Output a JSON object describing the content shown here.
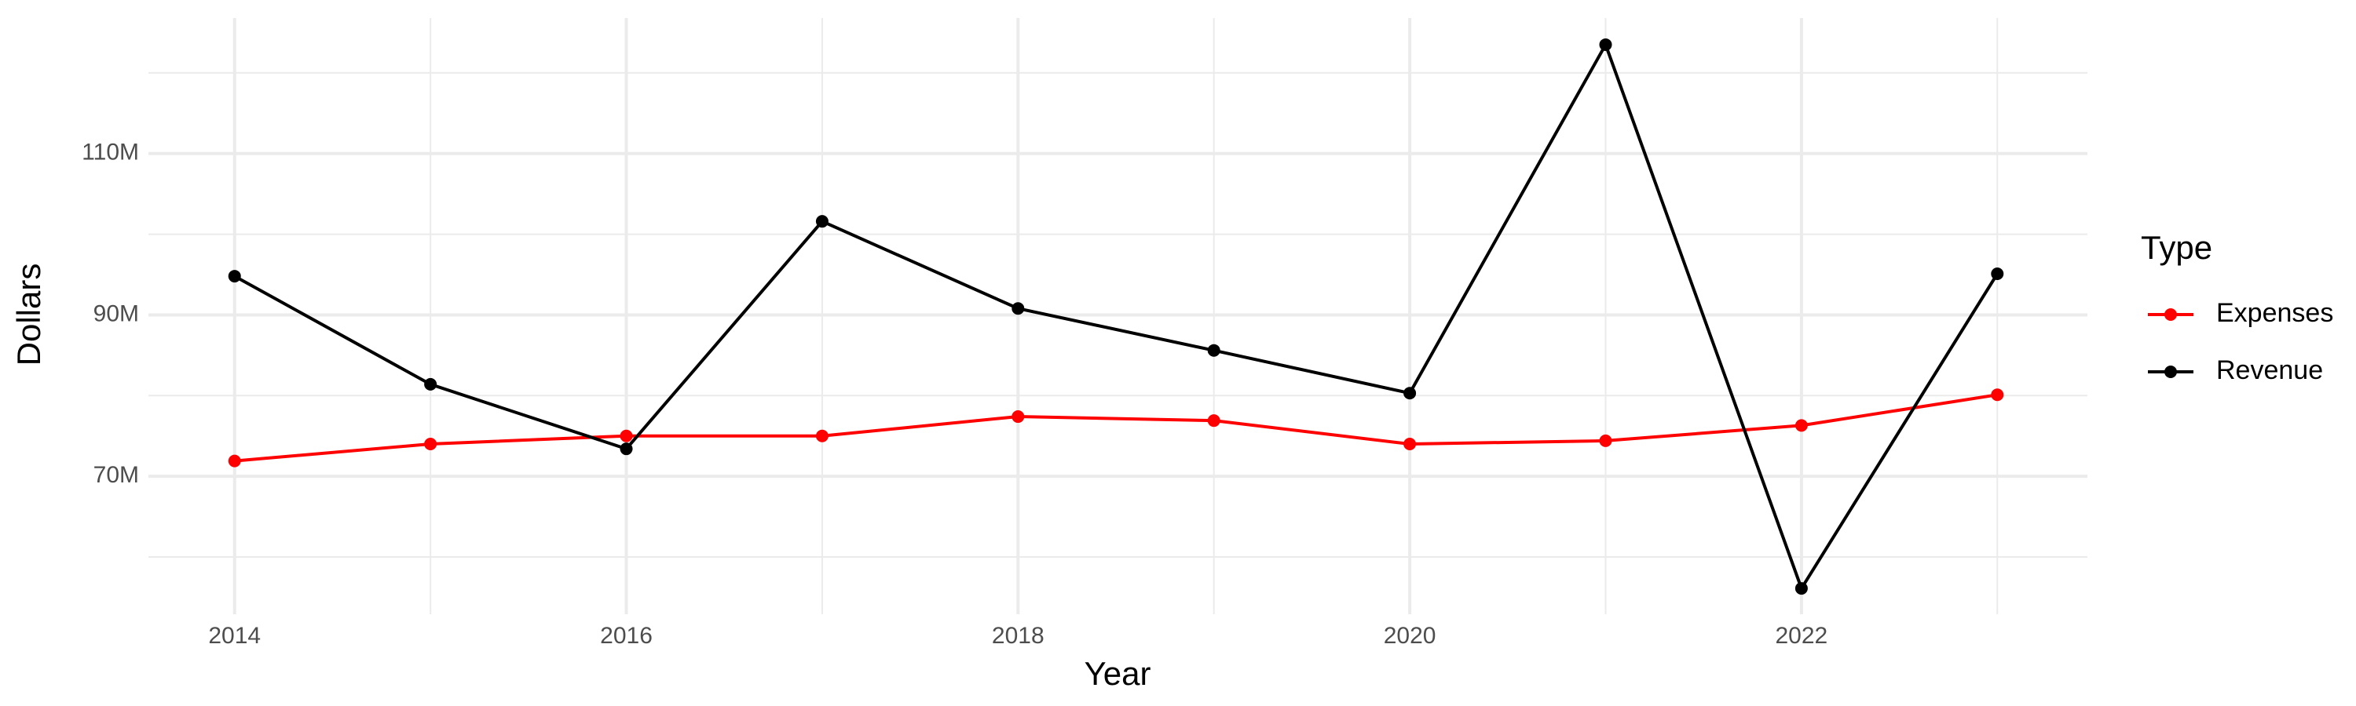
{
  "chart_data": {
    "type": "line",
    "x_label": "Year",
    "y_label": "Dollars",
    "legend_title": "Type",
    "x": [
      2014,
      2015,
      2016,
      2017,
      2018,
      2019,
      2020,
      2021,
      2022,
      2023
    ],
    "series": [
      {
        "name": "Expenses",
        "color": "#ff0000",
        "values": [
          71900000,
          74000000,
          75000000,
          75000000,
          77400000,
          76900000,
          74000000,
          74400000,
          76300000,
          80100000
        ]
      },
      {
        "name": "Revenue",
        "color": "#000000",
        "values": [
          94800000,
          81400000,
          73400000,
          101600000,
          90800000,
          85600000,
          80300000,
          123500000,
          56100000,
          95100000
        ]
      }
    ],
    "xlim": [
      2013.56,
      2023.46
    ],
    "xticks": [
      2014,
      2016,
      2018,
      2020,
      2022
    ],
    "ylim": [
      52900000,
      126800000
    ],
    "yticks": [
      {
        "value": 70000000,
        "label": "70M"
      },
      {
        "value": 90000000,
        "label": "90M"
      },
      {
        "value": 110000000,
        "label": "110M"
      }
    ],
    "grid": true,
    "legend": "right"
  }
}
